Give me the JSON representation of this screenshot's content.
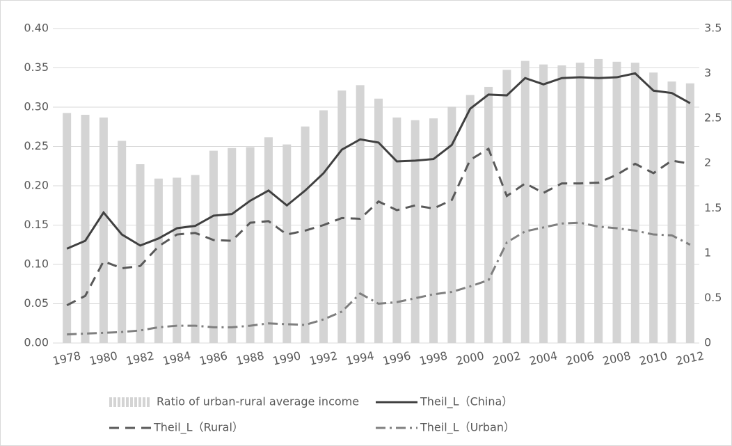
{
  "chart_data": {
    "type": "bar",
    "categories": [
      "1978",
      null,
      "1980",
      null,
      "1982",
      null,
      "1984",
      null,
      "1986",
      null,
      "1988",
      null,
      "1990",
      null,
      "1992",
      null,
      "1994",
      null,
      "1996",
      null,
      "1998",
      null,
      "2000",
      null,
      "2002",
      null,
      "2004",
      null,
      "2006",
      null,
      "2008",
      null,
      "2010",
      null,
      "2012"
    ],
    "series": [
      {
        "name": "Ratio of urban-rural average income",
        "type": "bar",
        "axis": "y2",
        "color": "#d4d4d4",
        "values": [
          2.56,
          2.54,
          2.51,
          2.25,
          1.99,
          1.83,
          1.84,
          1.87,
          2.14,
          2.17,
          2.18,
          2.29,
          2.21,
          2.41,
          2.59,
          2.81,
          2.87,
          2.72,
          2.51,
          2.48,
          2.5,
          2.63,
          2.76,
          2.85,
          3.04,
          3.14,
          3.1,
          3.09,
          3.12,
          3.16,
          3.13,
          3.12,
          3.01,
          2.91,
          2.89
        ]
      },
      {
        "name": "Theil_L（China）",
        "type": "line",
        "dash": "solid",
        "color": "#404040",
        "values": [
          0.12,
          0.13,
          0.166,
          0.138,
          0.124,
          0.133,
          0.146,
          0.149,
          0.162,
          0.164,
          0.181,
          0.194,
          0.175,
          0.194,
          0.216,
          0.246,
          0.259,
          0.255,
          0.231,
          0.232,
          0.234,
          0.252,
          0.298,
          0.316,
          0.315,
          0.337,
          0.329,
          0.337,
          0.338,
          0.337,
          0.338,
          0.343,
          0.321,
          0.318,
          0.305
        ]
      },
      {
        "name": "Theil_L（Rural）",
        "type": "line",
        "dash": "dashed",
        "color": "#595959",
        "values": [
          0.048,
          0.06,
          0.104,
          0.095,
          0.098,
          0.123,
          0.138,
          0.14,
          0.131,
          0.13,
          0.153,
          0.155,
          0.138,
          0.143,
          0.15,
          0.159,
          0.158,
          0.18,
          0.169,
          0.175,
          0.171,
          0.182,
          0.233,
          0.247,
          0.187,
          0.203,
          0.191,
          0.203,
          0.203,
          0.204,
          0.214,
          0.228,
          0.216,
          0.232,
          0.228
        ]
      },
      {
        "name": "Theil_L（Urban）",
        "type": "line",
        "dash": "dashdot",
        "color": "#7f7f7f",
        "values": [
          0.011,
          0.012,
          0.013,
          0.014,
          0.016,
          0.02,
          0.022,
          0.022,
          0.02,
          0.02,
          0.022,
          0.025,
          0.024,
          0.023,
          0.03,
          0.04,
          0.063,
          0.05,
          0.052,
          0.057,
          0.062,
          0.065,
          0.072,
          0.08,
          0.128,
          0.142,
          0.147,
          0.152,
          0.153,
          0.148,
          0.146,
          0.143,
          0.138,
          0.137,
          0.125
        ]
      }
    ],
    "ylim": [
      0,
      0.4
    ],
    "yticks": [
      {
        "value": 0,
        "label": "0.00"
      },
      0.05,
      {
        "value": 0.1,
        "label": "0.10"
      },
      0.15,
      {
        "value": 0.2,
        "label": "0.20"
      },
      0.25,
      {
        "value": 0.3,
        "label": "0.30"
      },
      0.35,
      {
        "value": 0.4,
        "label": "0.40"
      }
    ],
    "y2lim": [
      0,
      3.5
    ],
    "y2ticks": [
      0,
      0.5,
      1,
      1.5,
      2,
      2.5,
      3,
      3.5
    ],
    "grid": true
  }
}
